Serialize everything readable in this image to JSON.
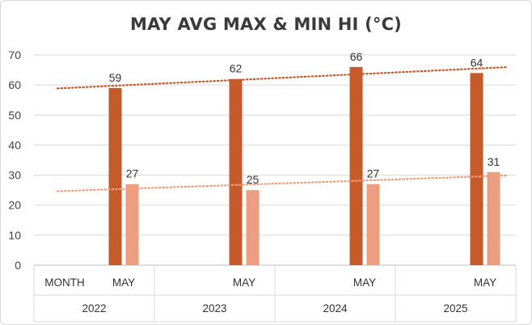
{
  "chart_data": {
    "type": "bar",
    "title": "MAY AVG MAX & MIN HI (°C)",
    "ylim": [
      0,
      70
    ],
    "yticks": [
      0,
      10,
      20,
      30,
      40,
      50,
      60,
      70
    ],
    "grid": true,
    "groups": [
      {
        "year": "2022",
        "subcategories": [
          "MONTH",
          "MAY"
        ]
      },
      {
        "year": "2023",
        "subcategories": [
          "MAY"
        ]
      },
      {
        "year": "2024",
        "subcategories": [
          "MAY"
        ]
      },
      {
        "year": "2025",
        "subcategories": [
          "MAY"
        ]
      }
    ],
    "categories": [
      "2022 MAY",
      "2023 MAY",
      "2024 MAY",
      "2025 MAY"
    ],
    "series": [
      {
        "values": [
          59,
          62,
          66,
          64
        ],
        "color": "#c55a2b"
      },
      {
        "values": [
          27,
          25,
          27,
          31
        ],
        "color": "#ee9e80"
      }
    ],
    "trendlines": [
      {
        "series": 0,
        "type": "linear",
        "style": "dotted",
        "color": "#c55a2b"
      },
      {
        "series": 1,
        "type": "linear",
        "style": "dotted",
        "color": "#ee9e80"
      }
    ]
  }
}
